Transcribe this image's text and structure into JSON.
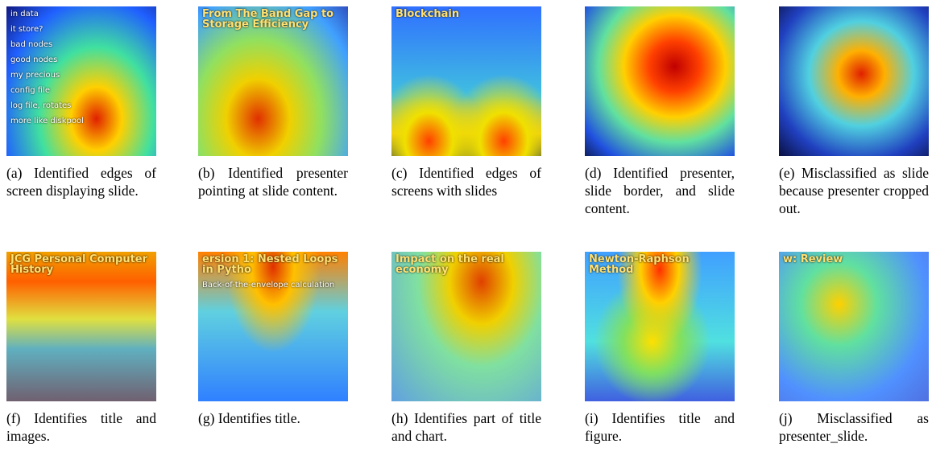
{
  "figure": {
    "panels": [
      {
        "image_text": [
          "in data",
          "it store?",
          "bad nodes",
          "good nodes",
          "my precious",
          "config file",
          "log file, rotates",
          "more like diskpool"
        ],
        "caption": "(a) Identified edges of screen displaying slide."
      },
      {
        "image_text": [
          "From The Band Gap to Storage Efficiency"
        ],
        "caption": "(b) Identified presenter pointing at slide content."
      },
      {
        "image_text": [
          "Blockchain"
        ],
        "caption": "(c) Identified edges of screens with slides"
      },
      {
        "image_text": [],
        "caption": "(d) Identified presenter, slide border, and slide content."
      },
      {
        "image_text": [],
        "caption": "(e) Misclassified as slide because presenter cropped out."
      },
      {
        "image_text": [
          "JCG Personal Computer History"
        ],
        "caption": "(f) Identifies title and images."
      },
      {
        "image_text": [
          "ersion 1: Nested Loops in Pytho",
          "Back-of-the-envelope calculation"
        ],
        "caption": "(g) Identifies title."
      },
      {
        "image_text": [
          "Impact on the real economy"
        ],
        "caption": "(h) Identifies part of title and chart."
      },
      {
        "image_text": [
          "Newton-Raphson Method"
        ],
        "caption": "(i) Identifies title and figure."
      },
      {
        "image_text": [
          "w: Review"
        ],
        "caption": "(j) Misclassified as presenter_slide."
      }
    ]
  }
}
